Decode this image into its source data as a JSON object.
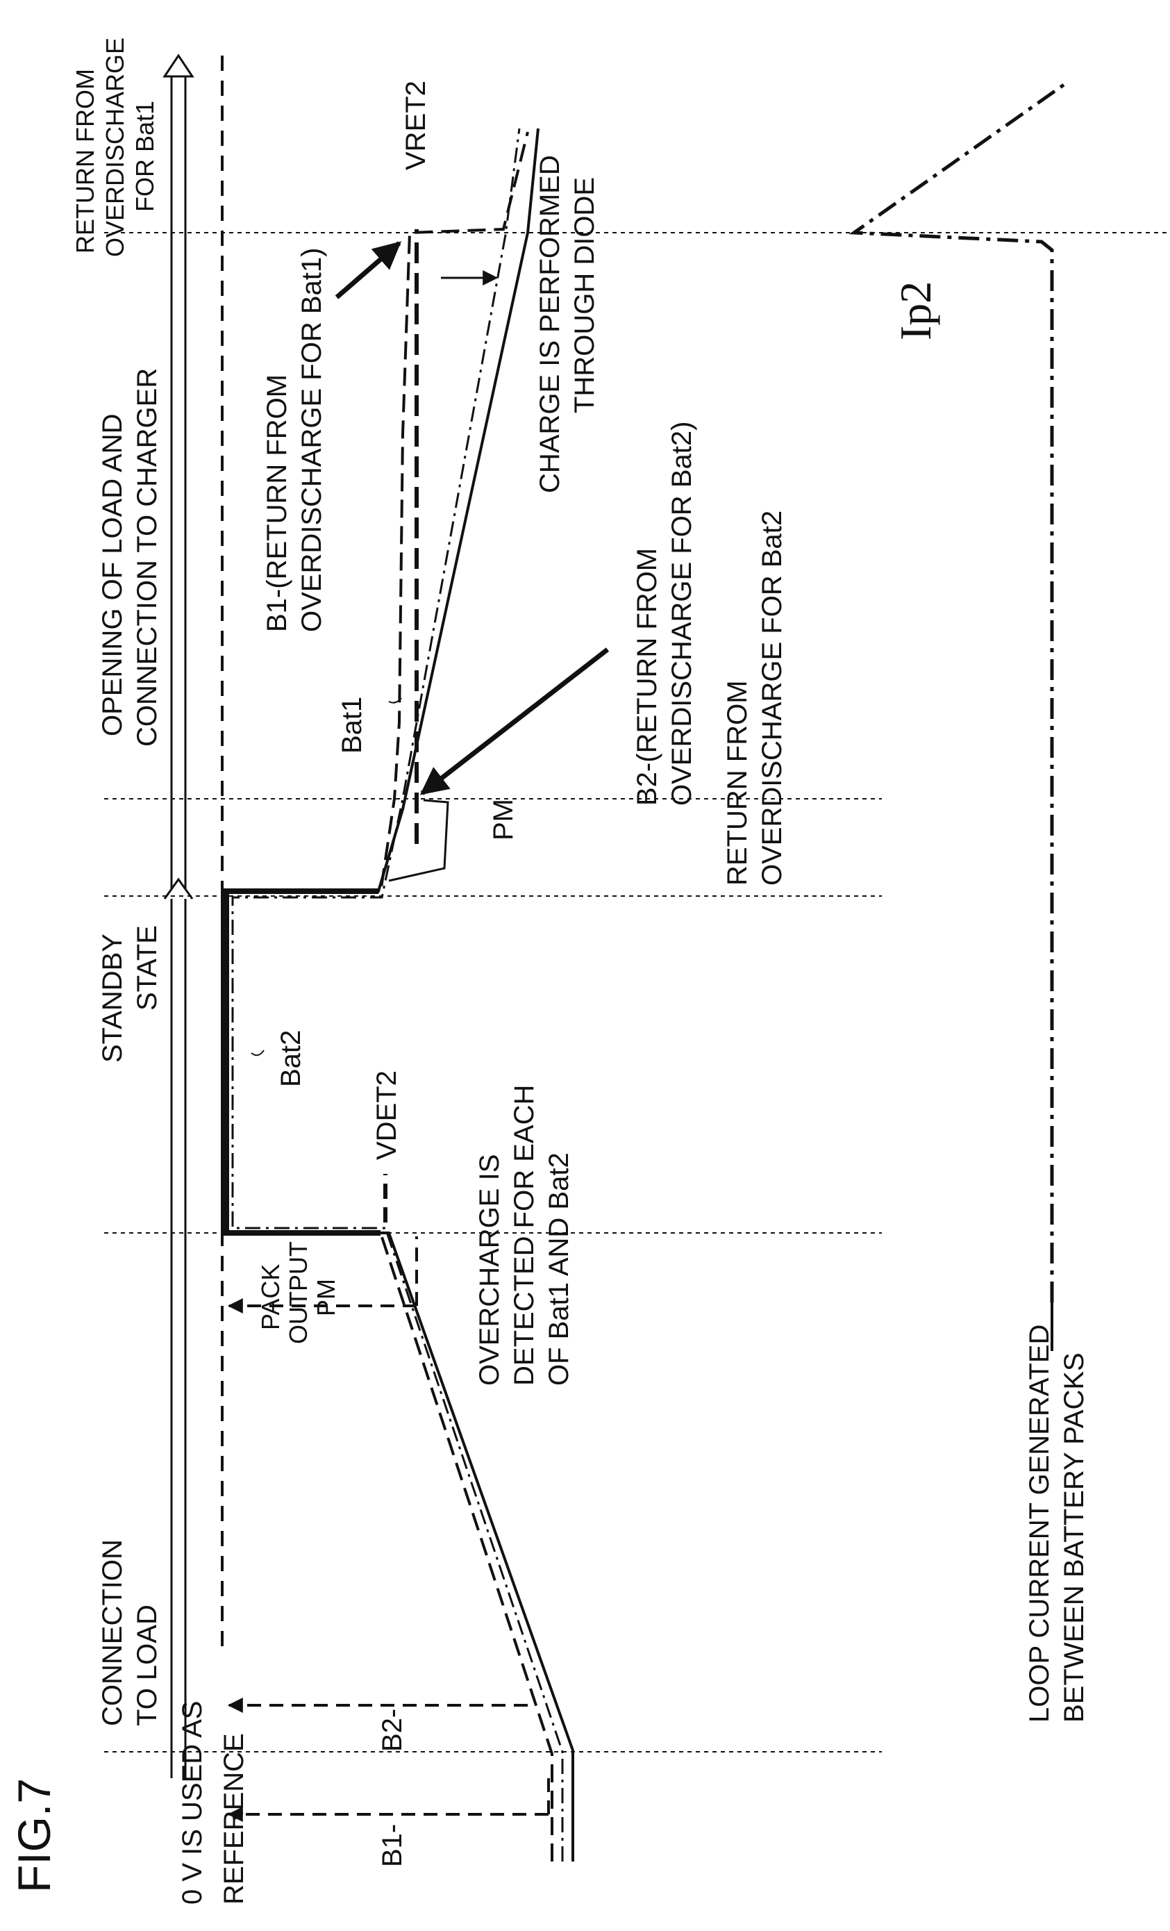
{
  "figure": {
    "title": "FIG.7"
  },
  "reference": {
    "line1": "0 V IS USED AS",
    "line2": "REFERENCE"
  },
  "phases": {
    "connection_to_load": {
      "line1": "CONNECTION",
      "line2": "TO LOAD"
    },
    "standby_state": {
      "line1": "STANDBY",
      "line2": "STATE"
    },
    "opening_and_charger": {
      "line1": "OPENING OF LOAD AND",
      "line2": "CONNECTION TO CHARGER"
    },
    "return_overdischarge_bat1": {
      "line1": "RETURN FROM",
      "line2": "OVERDISCHARGE",
      "line3": "FOR Bat1"
    }
  },
  "labels": {
    "b1": "B1-",
    "b2": "B2-",
    "pack_output": {
      "line1": "PACK",
      "line2": "OUTPUT",
      "line3": "PM"
    },
    "bat1": "Bat1",
    "bat2": "Bat2",
    "vdet2": "VDET2",
    "vret2": "VRET2",
    "pm": "PM",
    "ip2": "Ip2"
  },
  "notes": {
    "overcharge": {
      "line1": "OVERCHARGE IS",
      "line2": "DETECTED FOR EACH",
      "line3": "OF Bat1 AND Bat2"
    },
    "b2_return": {
      "line1": "B2-(RETURN FROM",
      "line2": "OVERDISCHARGE FOR Bat2)"
    },
    "return_bat2": {
      "line1": "RETURN FROM",
      "line2": "OVERDISCHARGE FOR Bat2"
    },
    "b1_return": {
      "line1": "B1-(RETURN FROM",
      "line2": "OVERDISCHARGE FOR Bat1)"
    },
    "charge_diode": {
      "line1": "CHARGE IS PERFORMED",
      "line2": "THROUGH DIODE"
    },
    "loop_current": {
      "line1": "LOOP CURRENT GENERATED",
      "line2": "BETWEEN BATTERY PACKS"
    }
  }
}
